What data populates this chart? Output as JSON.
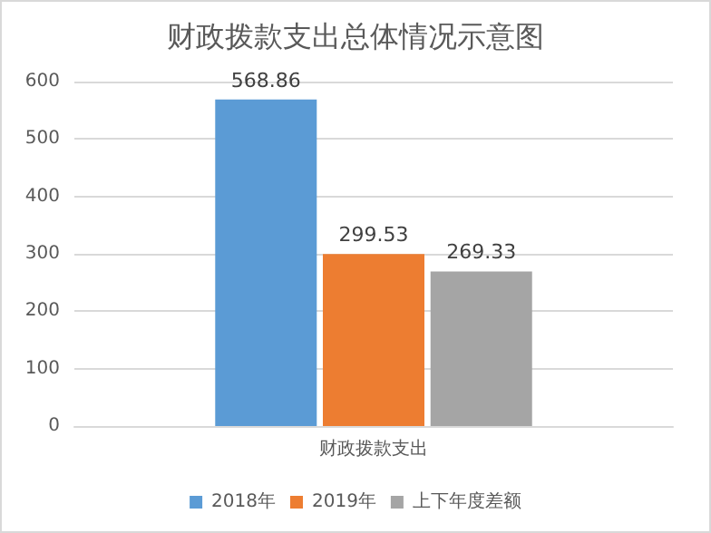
{
  "chart_data": {
    "type": "bar",
    "title": "财政拨款支出总体情况示意图",
    "categories": [
      "财政拨款支出"
    ],
    "series": [
      {
        "name": "2018年",
        "color": "#5b9bd5",
        "values": [
          568.86
        ]
      },
      {
        "name": "2019年",
        "color": "#ed7d31",
        "values": [
          299.53
        ]
      },
      {
        "name": "上下年度差额",
        "color": "#a5a5a5",
        "values": [
          269.33
        ]
      }
    ],
    "ylim": [
      0,
      600
    ],
    "yticks": [
      0,
      100,
      200,
      300,
      400,
      500,
      600
    ],
    "grid": "y",
    "legend": "bottom",
    "data_labels": true
  }
}
